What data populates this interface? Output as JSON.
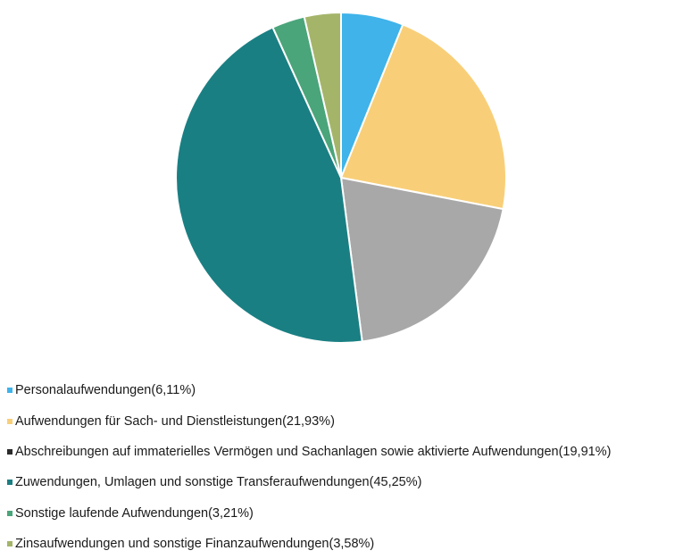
{
  "chart_data": {
    "type": "pie",
    "slices": [
      {
        "label": "Personalaufwendungen",
        "percent_label": "(6,11%)",
        "value": 6.11,
        "color": "#3fb3ea"
      },
      {
        "label": "Aufwendungen für Sach- und Dienstleistungen",
        "percent_label": "(21,93%)",
        "value": 21.93,
        "color": "#f8cf78"
      },
      {
        "label": "Abschreibungen auf immaterielles Vermögen und Sachanlagen sowie aktivierte Aufwendungen",
        "percent_label": "(19,91%)",
        "value": 19.91,
        "color": "#a8a8a8"
      },
      {
        "label": "Zuwendungen, Umlagen und sonstige Transferaufwendungen",
        "percent_label": "(45,25%)",
        "value": 45.25,
        "color": "#1a7f83"
      },
      {
        "label": "Sonstige laufende Aufwendungen",
        "percent_label": "(3,21%)",
        "value": 3.21,
        "color": "#4aa57a"
      },
      {
        "label": "Zinsaufwendungen und sonstige Finanzaufwendungen",
        "percent_label": "(3,58%)",
        "value": 3.58,
        "color": "#a4b56a"
      }
    ],
    "legend_swatch_colors": [
      "#3fb3ea",
      "#f8cf78",
      "#2b2b2b",
      "#1a7f83",
      "#4aa57a",
      "#a4b56a"
    ],
    "start_angle": "12 o'clock",
    "direction": "clockwise",
    "legend_position": "bottom-left"
  }
}
